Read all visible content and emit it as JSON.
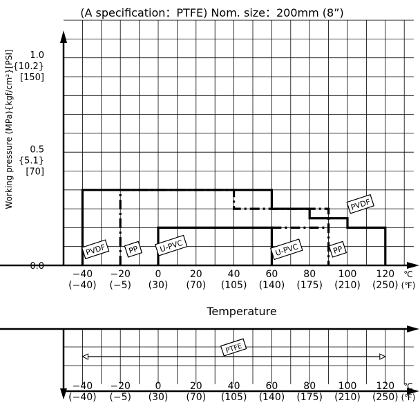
{
  "chart_data": {
    "type": "line",
    "title": "(A specification：PTFE)  Nom. size：200mm (8”)",
    "ylabel": "Working pressure (MPa){kgf/cm²}[PSI]",
    "xlabel": "Temperature",
    "xlim": [
      -50,
      135
    ],
    "ylim": [
      0,
      1.3
    ],
    "grid": true,
    "x_ticks": [
      {
        "c": "−40",
        "f": "(−40)",
        "x": -40
      },
      {
        "c": "−20",
        "f": "(−5)",
        "x": -20
      },
      {
        "c": "0",
        "f": "(30)",
        "x": 0
      },
      {
        "c": "20",
        "f": "(70)",
        "x": 20
      },
      {
        "c": "40",
        "f": "(105)",
        "x": 40
      },
      {
        "c": "60",
        "f": "(140)",
        "x": 60
      },
      {
        "c": "80",
        "f": "(175)",
        "x": 80
      },
      {
        "c": "100",
        "f": "(210)",
        "x": 100
      },
      {
        "c": "120",
        "f": "(250)",
        "x": 120
      }
    ],
    "x_units": {
      "c": "℃",
      "f": "(℉)"
    },
    "y_ticks": [
      {
        "y": 0.0,
        "lines": [
          "0.0"
        ]
      },
      {
        "y": 0.5,
        "lines": [
          "0.5",
          "{5.1}",
          "[70]"
        ]
      },
      {
        "y": 1.0,
        "lines": [
          "1.0",
          "{10.2}",
          "[150]"
        ]
      }
    ],
    "series": [
      {
        "name": "PVDF",
        "style": "solid",
        "x": [
          -40,
          -40,
          60,
          60,
          80,
          80,
          100,
          100,
          120,
          120
        ],
        "y": [
          0,
          0.4,
          0.4,
          0.3,
          0.3,
          0.25,
          0.25,
          0.2,
          0.2,
          0
        ]
      },
      {
        "name": "PP",
        "style": "dashdot",
        "x": [
          -20,
          -20,
          40,
          40,
          90,
          90
        ],
        "y": [
          0,
          0.4,
          0.4,
          0.3,
          0.3,
          0
        ]
      },
      {
        "name": "U-PVC",
        "style": "solid",
        "x": [
          0,
          0,
          60,
          60
        ],
        "y": [
          0,
          0.2,
          0.2,
          0
        ]
      },
      {
        "name": "PP",
        "style": "dashdot",
        "x": [
          60,
          90
        ],
        "y": [
          0.2,
          0.2
        ]
      }
    ],
    "labels": [
      {
        "text": "PVDF",
        "x": -33,
        "y": 0.08
      },
      {
        "text": "PP",
        "x": -13,
        "y": 0.08
      },
      {
        "text": "U-PVC",
        "x": 7,
        "y": 0.1
      },
      {
        "text": "U-PVC",
        "x": 68,
        "y": 0.08
      },
      {
        "text": "PP",
        "x": 95,
        "y": 0.08
      },
      {
        "text": "PVDF",
        "x": 107,
        "y": 0.32
      }
    ],
    "ptfe_range": {
      "label": "PTFE",
      "x": [
        -40,
        120
      ]
    }
  }
}
